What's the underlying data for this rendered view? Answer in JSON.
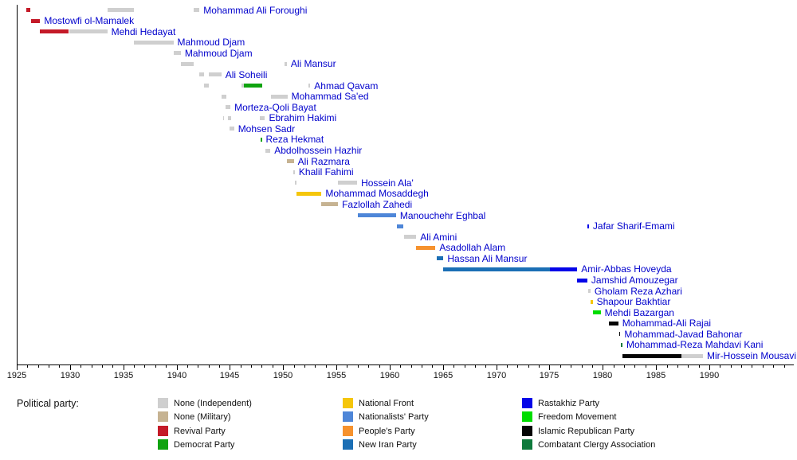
{
  "chart_data": {
    "type": "timeline",
    "description": "Timeline of Prime Ministers with bars colored by political party",
    "axis": {
      "start": 1925,
      "end": 1990,
      "major_step": 5,
      "minor_step": 1,
      "tick_labels": [
        "1925",
        "1930",
        "1935",
        "1940",
        "1945",
        "1950",
        "1955",
        "1960",
        "1965",
        "1970",
        "1975",
        "1980",
        "1985",
        "1990"
      ]
    },
    "name_label_color": "#0000CC",
    "axis_color": "#000000",
    "parties": {
      "ind": {
        "label": "None (Independent)",
        "color": "#CFCFCF"
      },
      "mil": {
        "label": "None (Military)",
        "color": "#C6B392"
      },
      "revival": {
        "label": "Revival Party",
        "color": "#C41A28"
      },
      "democrat": {
        "label": "Democrat Party",
        "color": "#0FA30F"
      },
      "nf": {
        "label": "National Front",
        "color": "#F5C60A"
      },
      "nat": {
        "label": "Nationalists' Party",
        "color": "#4E86D8"
      },
      "people": {
        "label": "People's Party",
        "color": "#F6922E"
      },
      "newiran": {
        "label": "New Iran Party",
        "color": "#1B6FB5"
      },
      "rastakhiz": {
        "label": "Rastakhiz Party",
        "color": "#0505E8"
      },
      "freedom": {
        "label": "Freedom Movement",
        "color": "#00DD00"
      },
      "irp": {
        "label": "Islamic Republican Party",
        "color": "#050505"
      },
      "cca": {
        "label": "Combatant Clergy Association",
        "color": "#0E7A3C"
      }
    },
    "people": [
      {
        "name": "Mohammad Ali Foroughi",
        "terms": [
          {
            "start": 1925.9,
            "end": 1926.3,
            "party": "revival"
          },
          {
            "start": 1933.5,
            "end": 1936.0,
            "party": "ind"
          },
          {
            "start": 1941.6,
            "end": 1942.15,
            "party": "ind"
          }
        ]
      },
      {
        "name": "Mostowfi ol-Mamalek",
        "terms": [
          {
            "start": 1926.35,
            "end": 1927.2,
            "party": "revival"
          }
        ]
      },
      {
        "name": "Mehdi Hedayat",
        "terms": [
          {
            "start": 1927.2,
            "end": 1929.9,
            "party": "revival"
          },
          {
            "start": 1929.9,
            "end": 1933.5,
            "party": "ind"
          }
        ]
      },
      {
        "name": "Mahmoud Djam",
        "terms": [
          {
            "start": 1936.0,
            "end": 1939.7,
            "party": "ind"
          }
        ]
      },
      {
        "name": "Mahmoud Djam",
        "terms": [
          {
            "start": 1939.7,
            "end": 1940.4,
            "party": "ind"
          }
        ]
      },
      {
        "name": "Ali Mansur",
        "terms": [
          {
            "start": 1940.4,
            "end": 1941.6,
            "party": "ind"
          },
          {
            "start": 1950.1,
            "end": 1950.35,
            "party": "ind"
          }
        ]
      },
      {
        "name": "Ali Soheili",
        "terms": [
          {
            "start": 1942.15,
            "end": 1942.6,
            "party": "ind"
          },
          {
            "start": 1943.05,
            "end": 1944.2,
            "party": "ind"
          }
        ]
      },
      {
        "name": "Ahmad Qavam",
        "terms": [
          {
            "start": 1942.6,
            "end": 1943.05,
            "party": "ind"
          },
          {
            "start": 1946.1,
            "end": 1946.3,
            "party": "ind"
          },
          {
            "start": 1946.35,
            "end": 1948.05,
            "party": "democrat"
          },
          {
            "start": 1952.4,
            "end": 1952.55,
            "party": "ind"
          }
        ]
      },
      {
        "name": "Mohammad Sa'ed",
        "terms": [
          {
            "start": 1944.2,
            "end": 1944.65,
            "party": "ind"
          },
          {
            "start": 1948.85,
            "end": 1950.4,
            "party": "ind"
          }
        ]
      },
      {
        "name": "Morteza-Qoli Bayat",
        "terms": [
          {
            "start": 1944.6,
            "end": 1945.05,
            "party": "ind"
          }
        ]
      },
      {
        "name": "Ebrahim Hakimi",
        "terms": [
          {
            "start": 1944.35,
            "end": 1944.45,
            "party": "ind"
          },
          {
            "start": 1944.8,
            "end": 1945.15,
            "party": "ind"
          },
          {
            "start": 1947.8,
            "end": 1948.3,
            "party": "ind"
          }
        ]
      },
      {
        "name": "Mohsen Sadr",
        "terms": [
          {
            "start": 1945.0,
            "end": 1945.4,
            "party": "ind"
          }
        ]
      },
      {
        "name": "Reza Hekmat",
        "terms": [
          {
            "start": 1947.85,
            "end": 1948.0,
            "party": "democrat"
          }
        ]
      },
      {
        "name": "Abdolhossein Hazhir",
        "terms": [
          {
            "start": 1948.35,
            "end": 1948.8,
            "party": "ind"
          }
        ]
      },
      {
        "name": "Ali Razmara",
        "terms": [
          {
            "start": 1950.35,
            "end": 1951.0,
            "party": "mil"
          }
        ]
      },
      {
        "name": "Khalil Fahimi",
        "terms": [
          {
            "start": 1950.95,
            "end": 1951.1,
            "party": "ind"
          }
        ]
      },
      {
        "name": "Hossein Ala'",
        "terms": [
          {
            "start": 1951.1,
            "end": 1951.25,
            "party": "ind"
          },
          {
            "start": 1955.15,
            "end": 1956.95,
            "party": "ind"
          }
        ]
      },
      {
        "name": "Mohammad Mosaddegh",
        "terms": [
          {
            "start": 1951.25,
            "end": 1953.6,
            "party": "nf"
          }
        ]
      },
      {
        "name": "Fazlollah Zahedi",
        "terms": [
          {
            "start": 1953.6,
            "end": 1955.15,
            "party": "mil"
          }
        ]
      },
      {
        "name": "Manouchehr Eghbal",
        "terms": [
          {
            "start": 1957.0,
            "end": 1960.6,
            "party": "nat"
          }
        ]
      },
      {
        "name": "Jafar Sharif-Emami",
        "terms": [
          {
            "start": 1960.65,
            "end": 1961.3,
            "party": "nat"
          },
          {
            "start": 1978.55,
            "end": 1978.7,
            "party": "rastakhiz"
          }
        ]
      },
      {
        "name": "Ali Amini",
        "terms": [
          {
            "start": 1961.35,
            "end": 1962.5,
            "party": "ind"
          }
        ]
      },
      {
        "name": "Asadollah Alam",
        "terms": [
          {
            "start": 1962.5,
            "end": 1964.3,
            "party": "people"
          }
        ]
      },
      {
        "name": "Hassan Ali Mansur",
        "terms": [
          {
            "start": 1964.4,
            "end": 1965.05,
            "party": "newiran"
          }
        ]
      },
      {
        "name": "Amir-Abbas Hoveyda",
        "terms": [
          {
            "start": 1965.05,
            "end": 1975.05,
            "party": "newiran"
          },
          {
            "start": 1975.05,
            "end": 1977.6,
            "party": "rastakhiz"
          }
        ]
      },
      {
        "name": "Jamshid Amouzegar",
        "terms": [
          {
            "start": 1977.6,
            "end": 1978.55,
            "party": "rastakhiz"
          }
        ]
      },
      {
        "name": "Gholam Reza Azhari",
        "terms": [
          {
            "start": 1978.6,
            "end": 1978.85,
            "party": "ind"
          }
        ]
      },
      {
        "name": "Shapour Bakhtiar",
        "terms": [
          {
            "start": 1978.85,
            "end": 1979.05,
            "party": "nf"
          }
        ]
      },
      {
        "name": "Mehdi Bazargan",
        "terms": [
          {
            "start": 1979.05,
            "end": 1979.8,
            "party": "freedom"
          }
        ]
      },
      {
        "name": "Mohammad-Ali Rajai",
        "terms": [
          {
            "start": 1980.55,
            "end": 1981.45,
            "party": "irp"
          }
        ]
      },
      {
        "name": "Mohammad-Javad Bahonar",
        "terms": [
          {
            "start": 1981.55,
            "end": 1981.65,
            "party": "irp"
          }
        ]
      },
      {
        "name": "Mohammad-Reza Mahdavi Kani",
        "terms": [
          {
            "start": 1981.7,
            "end": 1981.85,
            "party": "cca"
          }
        ]
      },
      {
        "name": "Mir-Hossein Mousavi",
        "terms": [
          {
            "start": 1981.85,
            "end": 1987.4,
            "party": "irp"
          },
          {
            "start": 1987.4,
            "end": 1989.4,
            "party": "ind"
          }
        ]
      }
    ]
  },
  "legend": {
    "title": "Political party:",
    "columns": [
      [
        "ind",
        "mil",
        "revival",
        "democrat"
      ],
      [
        "nf",
        "nat",
        "people",
        "newiran"
      ],
      [
        "rastakhiz",
        "freedom",
        "irp",
        "cca"
      ]
    ]
  }
}
